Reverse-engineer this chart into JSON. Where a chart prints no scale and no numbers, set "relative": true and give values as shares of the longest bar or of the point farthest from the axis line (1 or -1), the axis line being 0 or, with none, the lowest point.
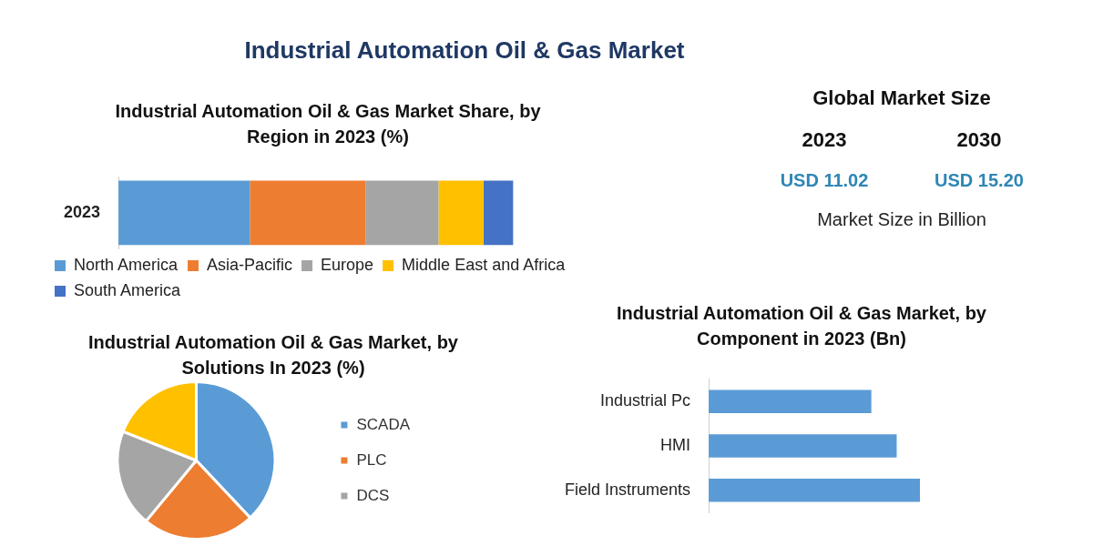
{
  "chart_data": [
    {
      "type": "other",
      "title": "Industrial Automation Oil & Gas Market"
    },
    {
      "type": "bar",
      "title": "Industrial Automation Oil & Gas Market Share, by Region in 2023 (%)",
      "orientation": "horizontal",
      "stacked": true,
      "relative": true,
      "legend": "bottom",
      "categories": [
        "2023"
      ],
      "series": [
        {
          "name": "North America",
          "color": "#5b9bd5",
          "values": [
            0.333
          ]
        },
        {
          "name": "Asia-Pacific",
          "color": "#ed7d31",
          "values": [
            0.293
          ]
        },
        {
          "name": "Europe",
          "color": "#a5a5a5",
          "values": [
            0.185
          ]
        },
        {
          "name": "Middle East and Africa",
          "color": "#ffc000",
          "values": [
            0.114
          ]
        },
        {
          "name": "South America",
          "color": "#4472c4",
          "values": [
            0.075
          ]
        }
      ]
    },
    {
      "type": "other",
      "title": "Global Market Size",
      "annotations": [
        "2023",
        "2030",
        "USD 11.02",
        "USD 15.20",
        "Market Size in Billion"
      ]
    },
    {
      "type": "pie",
      "title": "Industrial Automation Oil & Gas Market, by Solutions In 2023 (%)",
      "legend": "right",
      "categories": [
        "SCADA",
        "PLC",
        "DCS",
        null
      ],
      "values": [
        38,
        23,
        20,
        19
      ],
      "colors": [
        "#5b9bd5",
        "#ed7d31",
        "#a5a5a5",
        "#ffc000"
      ]
    },
    {
      "type": "bar",
      "title": "Industrial Automation Oil & Gas Market, by Component in 2023 (Bn)",
      "orientation": "horizontal",
      "relative": true,
      "legend": false,
      "categories": [
        "Industrial Pc",
        "HMI",
        "Field Instruments"
      ],
      "values": [
        0.77,
        0.89,
        1
      ],
      "color": "#5b9bd5"
    }
  ]
}
